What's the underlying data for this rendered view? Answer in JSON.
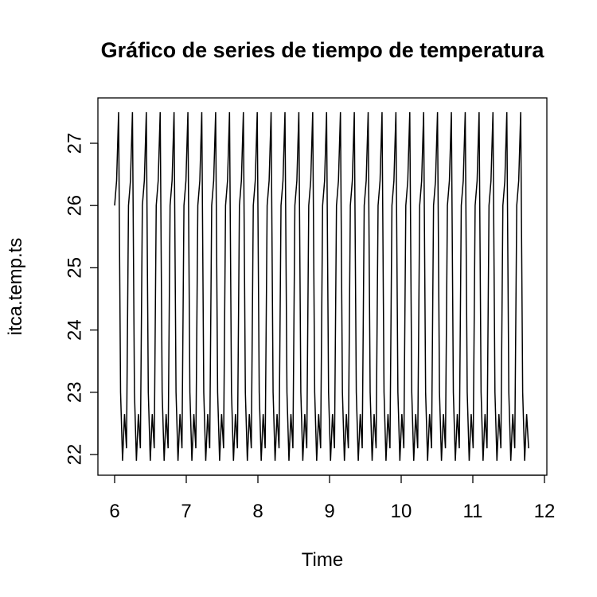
{
  "chart_data": {
    "type": "line",
    "title": "Gráfico de series de tiempo de temperatura",
    "xlabel": "Time",
    "ylabel": "itca.temp.ts",
    "xlim": [
      6,
      11.84
    ],
    "ylim": [
      21.9,
      27.5
    ],
    "x_ticks": [
      6,
      7,
      8,
      9,
      10,
      11,
      12
    ],
    "y_ticks": [
      22,
      23,
      24,
      25,
      26,
      27
    ],
    "grid": false,
    "legend": "none",
    "line_color": "#000000",
    "cycle": {
      "x_start": 6,
      "period": 0.19355,
      "n_cycles": 30,
      "pattern": [
        26.0,
        26.4,
        27.5,
        23.0,
        21.9,
        22.65,
        22.1
      ]
    }
  }
}
